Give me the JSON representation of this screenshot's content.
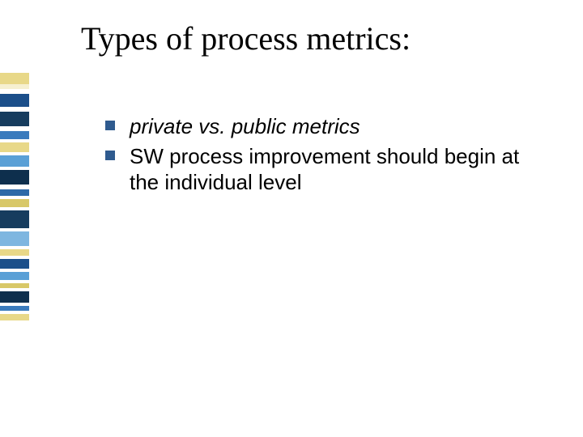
{
  "title": "Types of process metrics:",
  "bullets": [
    {
      "text": "private vs. public metrics",
      "italic": true
    },
    {
      "text": "SW process improvement should begin at the individual level",
      "italic": false
    }
  ],
  "bullet_marker_color": "#2f5b8f",
  "stripes": [
    {
      "color": "#e8d888",
      "h": 14
    },
    {
      "color": "#f6f0d0",
      "h": 6
    },
    {
      "color": "#ffffff",
      "h": 6
    },
    {
      "color": "#1b4f8a",
      "h": 16
    },
    {
      "color": "#ffffff",
      "h": 6
    },
    {
      "color": "#163c5e",
      "h": 18
    },
    {
      "color": "#ffffff",
      "h": 6
    },
    {
      "color": "#3a7bbd",
      "h": 10
    },
    {
      "color": "#ffffff",
      "h": 4
    },
    {
      "color": "#e8d888",
      "h": 12
    },
    {
      "color": "#ffffff",
      "h": 4
    },
    {
      "color": "#5aa0d6",
      "h": 14
    },
    {
      "color": "#ffffff",
      "h": 4
    },
    {
      "color": "#0e2f4d",
      "h": 18
    },
    {
      "color": "#ffffff",
      "h": 6
    },
    {
      "color": "#2e6aa8",
      "h": 8
    },
    {
      "color": "#ffffff",
      "h": 4
    },
    {
      "color": "#d8c868",
      "h": 10
    },
    {
      "color": "#ffffff",
      "h": 4
    },
    {
      "color": "#163c5e",
      "h": 22
    },
    {
      "color": "#ffffff",
      "h": 4
    },
    {
      "color": "#7eb6e0",
      "h": 18
    },
    {
      "color": "#ffffff",
      "h": 4
    },
    {
      "color": "#e8d888",
      "h": 8
    },
    {
      "color": "#ffffff",
      "h": 4
    },
    {
      "color": "#1b4f8a",
      "h": 12
    },
    {
      "color": "#ffffff",
      "h": 4
    },
    {
      "color": "#5aa0d6",
      "h": 10
    },
    {
      "color": "#ffffff",
      "h": 4
    },
    {
      "color": "#d8c868",
      "h": 6
    },
    {
      "color": "#ffffff",
      "h": 4
    },
    {
      "color": "#0e2f4d",
      "h": 14
    },
    {
      "color": "#ffffff",
      "h": 4
    },
    {
      "color": "#3a7bbd",
      "h": 6
    },
    {
      "color": "#ffffff",
      "h": 4
    },
    {
      "color": "#e8d888",
      "h": 8
    }
  ]
}
